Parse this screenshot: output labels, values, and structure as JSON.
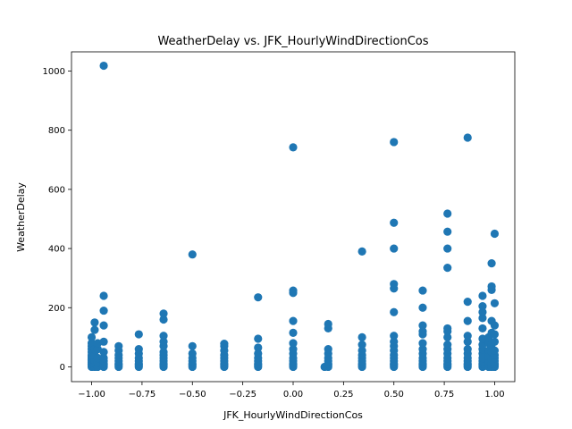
{
  "chart_data": {
    "type": "scatter",
    "title": "WeatherDelay vs. JFK_HourlyWindDirectionCos",
    "xlabel": "JFK_HourlyWindDirectionCos",
    "ylabel": "WeatherDelay",
    "xlim": [
      -1.1,
      1.1
    ],
    "ylim": [
      -50,
      1065
    ],
    "xticks": [
      -1.0,
      -0.75,
      -0.5,
      -0.25,
      0.0,
      0.25,
      0.5,
      0.75,
      1.0
    ],
    "xtick_labels": [
      "−1.00",
      "−0.75",
      "−0.50",
      "−0.25",
      "0.00",
      "0.25",
      "0.50",
      "0.75",
      "1.00"
    ],
    "yticks": [
      0,
      200,
      400,
      600,
      800,
      1000
    ],
    "ytick_labels": [
      "0",
      "200",
      "400",
      "600",
      "800",
      "1000"
    ],
    "grid": false,
    "marker_color": "#1f77b4",
    "series": [
      {
        "points": [
          [
            -1.0,
            0
          ],
          [
            -1.0,
            5
          ],
          [
            -1.0,
            10
          ],
          [
            -1.0,
            15
          ],
          [
            -1.0,
            20
          ],
          [
            -1.0,
            25
          ],
          [
            -1.0,
            30
          ],
          [
            -1.0,
            35
          ],
          [
            -1.0,
            40
          ],
          [
            -1.0,
            50
          ],
          [
            -1.0,
            60
          ],
          [
            -1.0,
            70
          ],
          [
            -1.0,
            80
          ],
          [
            -1.0,
            100
          ],
          [
            -0.985,
            0
          ],
          [
            -0.985,
            10
          ],
          [
            -0.985,
            20
          ],
          [
            -0.985,
            40
          ],
          [
            -0.985,
            60
          ],
          [
            -0.985,
            125
          ],
          [
            -0.985,
            150
          ],
          [
            -0.97,
            0
          ],
          [
            -0.97,
            15
          ],
          [
            -0.97,
            30
          ],
          [
            -0.97,
            60
          ],
          [
            -0.97,
            80
          ],
          [
            -0.94,
            0
          ],
          [
            -0.94,
            5
          ],
          [
            -0.94,
            10
          ],
          [
            -0.94,
            20
          ],
          [
            -0.94,
            30
          ],
          [
            -0.94,
            50
          ],
          [
            -0.94,
            85
          ],
          [
            -0.94,
            140
          ],
          [
            -0.94,
            190
          ],
          [
            -0.94,
            240
          ],
          [
            -0.94,
            1018
          ],
          [
            -0.866,
            0
          ],
          [
            -0.866,
            5
          ],
          [
            -0.866,
            10
          ],
          [
            -0.866,
            20
          ],
          [
            -0.866,
            30
          ],
          [
            -0.866,
            40
          ],
          [
            -0.866,
            55
          ],
          [
            -0.866,
            70
          ],
          [
            -0.766,
            0
          ],
          [
            -0.766,
            5
          ],
          [
            -0.766,
            10
          ],
          [
            -0.766,
            20
          ],
          [
            -0.766,
            30
          ],
          [
            -0.766,
            45
          ],
          [
            -0.766,
            60
          ],
          [
            -0.766,
            110
          ],
          [
            -0.643,
            0
          ],
          [
            -0.643,
            5
          ],
          [
            -0.643,
            10
          ],
          [
            -0.643,
            20
          ],
          [
            -0.643,
            30
          ],
          [
            -0.643,
            40
          ],
          [
            -0.643,
            50
          ],
          [
            -0.643,
            70
          ],
          [
            -0.643,
            85
          ],
          [
            -0.643,
            105
          ],
          [
            -0.643,
            160
          ],
          [
            -0.643,
            180
          ],
          [
            -0.5,
            0
          ],
          [
            -0.5,
            5
          ],
          [
            -0.5,
            10
          ],
          [
            -0.5,
            20
          ],
          [
            -0.5,
            30
          ],
          [
            -0.5,
            45
          ],
          [
            -0.5,
            70
          ],
          [
            -0.5,
            380
          ],
          [
            -0.342,
            0
          ],
          [
            -0.342,
            5
          ],
          [
            -0.342,
            10
          ],
          [
            -0.342,
            20
          ],
          [
            -0.342,
            30
          ],
          [
            -0.342,
            40
          ],
          [
            -0.342,
            55
          ],
          [
            -0.342,
            70
          ],
          [
            -0.342,
            78
          ],
          [
            -0.174,
            0
          ],
          [
            -0.174,
            5
          ],
          [
            -0.174,
            10
          ],
          [
            -0.174,
            20
          ],
          [
            -0.174,
            30
          ],
          [
            -0.174,
            45
          ],
          [
            -0.174,
            65
          ],
          [
            -0.174,
            95
          ],
          [
            -0.174,
            235
          ],
          [
            0.0,
            0
          ],
          [
            0.0,
            5
          ],
          [
            0.0,
            10
          ],
          [
            0.0,
            20
          ],
          [
            0.0,
            30
          ],
          [
            0.0,
            45
          ],
          [
            0.0,
            60
          ],
          [
            0.0,
            80
          ],
          [
            0.0,
            115
          ],
          [
            0.0,
            155
          ],
          [
            0.0,
            250
          ],
          [
            0.0,
            258
          ],
          [
            0.0,
            742
          ],
          [
            0.156,
            0
          ],
          [
            0.174,
            0
          ],
          [
            0.174,
            5
          ],
          [
            0.174,
            10
          ],
          [
            0.174,
            20
          ],
          [
            0.174,
            30
          ],
          [
            0.174,
            45
          ],
          [
            0.174,
            60
          ],
          [
            0.174,
            130
          ],
          [
            0.174,
            145
          ],
          [
            0.342,
            0
          ],
          [
            0.342,
            5
          ],
          [
            0.342,
            10
          ],
          [
            0.342,
            20
          ],
          [
            0.342,
            30
          ],
          [
            0.342,
            40
          ],
          [
            0.342,
            55
          ],
          [
            0.342,
            75
          ],
          [
            0.342,
            100
          ],
          [
            0.342,
            390
          ],
          [
            0.5,
            0
          ],
          [
            0.5,
            5
          ],
          [
            0.5,
            10
          ],
          [
            0.5,
            20
          ],
          [
            0.5,
            30
          ],
          [
            0.5,
            40
          ],
          [
            0.5,
            55
          ],
          [
            0.5,
            70
          ],
          [
            0.5,
            85
          ],
          [
            0.5,
            105
          ],
          [
            0.5,
            185
          ],
          [
            0.5,
            265
          ],
          [
            0.5,
            280
          ],
          [
            0.5,
            400
          ],
          [
            0.5,
            487
          ],
          [
            0.5,
            760
          ],
          [
            0.643,
            0
          ],
          [
            0.643,
            5
          ],
          [
            0.643,
            10
          ],
          [
            0.643,
            20
          ],
          [
            0.643,
            30
          ],
          [
            0.643,
            45
          ],
          [
            0.643,
            60
          ],
          [
            0.643,
            80
          ],
          [
            0.643,
            110
          ],
          [
            0.643,
            120
          ],
          [
            0.643,
            140
          ],
          [
            0.643,
            200
          ],
          [
            0.643,
            258
          ],
          [
            0.766,
            0
          ],
          [
            0.766,
            5
          ],
          [
            0.766,
            10
          ],
          [
            0.766,
            20
          ],
          [
            0.766,
            30
          ],
          [
            0.766,
            45
          ],
          [
            0.766,
            60
          ],
          [
            0.766,
            75
          ],
          [
            0.766,
            100
          ],
          [
            0.766,
            120
          ],
          [
            0.766,
            130
          ],
          [
            0.766,
            335
          ],
          [
            0.766,
            400
          ],
          [
            0.766,
            457
          ],
          [
            0.766,
            518
          ],
          [
            0.866,
            0
          ],
          [
            0.866,
            5
          ],
          [
            0.866,
            10
          ],
          [
            0.866,
            20
          ],
          [
            0.866,
            30
          ],
          [
            0.866,
            45
          ],
          [
            0.866,
            60
          ],
          [
            0.866,
            85
          ],
          [
            0.866,
            105
          ],
          [
            0.866,
            155
          ],
          [
            0.866,
            220
          ],
          [
            0.866,
            775
          ],
          [
            0.94,
            0
          ],
          [
            0.94,
            5
          ],
          [
            0.94,
            10
          ],
          [
            0.94,
            20
          ],
          [
            0.94,
            30
          ],
          [
            0.94,
            45
          ],
          [
            0.94,
            60
          ],
          [
            0.94,
            75
          ],
          [
            0.94,
            95
          ],
          [
            0.94,
            130
          ],
          [
            0.94,
            165
          ],
          [
            0.94,
            185
          ],
          [
            0.94,
            205
          ],
          [
            0.94,
            240
          ],
          [
            0.97,
            0
          ],
          [
            0.97,
            10
          ],
          [
            0.97,
            20
          ],
          [
            0.97,
            35
          ],
          [
            0.97,
            55
          ],
          [
            0.97,
            80
          ],
          [
            0.97,
            100
          ],
          [
            0.985,
            0
          ],
          [
            0.985,
            10
          ],
          [
            0.985,
            25
          ],
          [
            0.985,
            50
          ],
          [
            0.985,
            75
          ],
          [
            0.985,
            115
          ],
          [
            0.985,
            155
          ],
          [
            0.985,
            260
          ],
          [
            0.985,
            272
          ],
          [
            0.985,
            350
          ],
          [
            1.0,
            0
          ],
          [
            1.0,
            5
          ],
          [
            1.0,
            10
          ],
          [
            1.0,
            20
          ],
          [
            1.0,
            30
          ],
          [
            1.0,
            40
          ],
          [
            1.0,
            55
          ],
          [
            1.0,
            85
          ],
          [
            1.0,
            110
          ],
          [
            1.0,
            140
          ],
          [
            1.0,
            215
          ],
          [
            1.0,
            450
          ]
        ]
      }
    ]
  }
}
